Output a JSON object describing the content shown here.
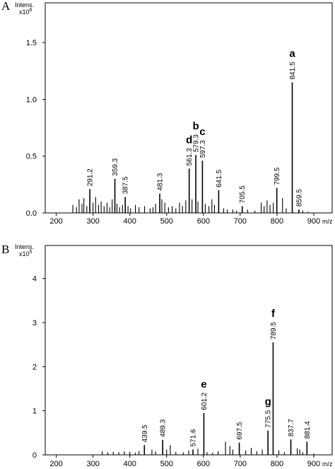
{
  "chart_data": [
    {
      "panel": "A",
      "type": "bar",
      "ylabel": "Intens.",
      "yunit_base": "x10",
      "yunit_exp": "6",
      "xlabel": "m/z",
      "xlim": [
        170,
        950
      ],
      "ylim": [
        0,
        1.85
      ],
      "xticks": [
        200,
        300,
        400,
        500,
        600,
        700,
        800,
        900
      ],
      "yticks": [
        "0.0",
        "0.5",
        "1.0",
        "1.5"
      ],
      "ytick_values": [
        0.0,
        0.5,
        1.0,
        1.5
      ],
      "labeled_peaks": [
        {
          "mz": 291.2,
          "value": 0.21,
          "label": "291.2"
        },
        {
          "mz": 359.3,
          "value": 0.3,
          "label": "359.3"
        },
        {
          "mz": 387.5,
          "value": 0.14,
          "label": "387.5"
        },
        {
          "mz": 481.3,
          "value": 0.17,
          "label": "481.3"
        },
        {
          "mz": 561.3,
          "value": 0.39,
          "label": "561.3",
          "annotation": "d"
        },
        {
          "mz": 579.3,
          "value": 0.51,
          "label": "579.3",
          "annotation": "b"
        },
        {
          "mz": 597.3,
          "value": 0.46,
          "label": "597.3",
          "annotation": "c"
        },
        {
          "mz": 641.5,
          "value": 0.2,
          "label": "641.5"
        },
        {
          "mz": 705.5,
          "value": 0.06,
          "label": "705.5"
        },
        {
          "mz": 799.5,
          "value": 0.22,
          "label": "799.5"
        },
        {
          "mz": 841.5,
          "value": 1.15,
          "label": "841.5",
          "annotation": "a"
        },
        {
          "mz": 859.5,
          "value": 0.03,
          "label": "859.5"
        }
      ],
      "minor_peaks": [
        {
          "mz": 245,
          "value": 0.07
        },
        {
          "mz": 255,
          "value": 0.05
        },
        {
          "mz": 262,
          "value": 0.12
        },
        {
          "mz": 270,
          "value": 0.08
        },
        {
          "mz": 275,
          "value": 0.13
        },
        {
          "mz": 283,
          "value": 0.06
        },
        {
          "mz": 300,
          "value": 0.09
        },
        {
          "mz": 307,
          "value": 0.14
        },
        {
          "mz": 315,
          "value": 0.07
        },
        {
          "mz": 322,
          "value": 0.1
        },
        {
          "mz": 330,
          "value": 0.06
        },
        {
          "mz": 338,
          "value": 0.09
        },
        {
          "mz": 345,
          "value": 0.05
        },
        {
          "mz": 352,
          "value": 0.12
        },
        {
          "mz": 365,
          "value": 0.08
        },
        {
          "mz": 372,
          "value": 0.05
        },
        {
          "mz": 380,
          "value": 0.07
        },
        {
          "mz": 395,
          "value": 0.06
        },
        {
          "mz": 402,
          "value": 0.04
        },
        {
          "mz": 415,
          "value": 0.07
        },
        {
          "mz": 425,
          "value": 0.05
        },
        {
          "mz": 440,
          "value": 0.06
        },
        {
          "mz": 455,
          "value": 0.04
        },
        {
          "mz": 463,
          "value": 0.05
        },
        {
          "mz": 470,
          "value": 0.08
        },
        {
          "mz": 487,
          "value": 0.12
        },
        {
          "mz": 495,
          "value": 0.09
        },
        {
          "mz": 505,
          "value": 0.05
        },
        {
          "mz": 515,
          "value": 0.06
        },
        {
          "mz": 525,
          "value": 0.04
        },
        {
          "mz": 535,
          "value": 0.09
        },
        {
          "mz": 543,
          "value": 0.06
        },
        {
          "mz": 552,
          "value": 0.11
        },
        {
          "mz": 569,
          "value": 0.12
        },
        {
          "mz": 585,
          "value": 0.1
        },
        {
          "mz": 605,
          "value": 0.08
        },
        {
          "mz": 615,
          "value": 0.06
        },
        {
          "mz": 623,
          "value": 0.12
        },
        {
          "mz": 630,
          "value": 0.07
        },
        {
          "mz": 655,
          "value": 0.04
        },
        {
          "mz": 665,
          "value": 0.03
        },
        {
          "mz": 680,
          "value": 0.03
        },
        {
          "mz": 690,
          "value": 0.02
        },
        {
          "mz": 720,
          "value": 0.03
        },
        {
          "mz": 740,
          "value": 0.02
        },
        {
          "mz": 757,
          "value": 0.09
        },
        {
          "mz": 765,
          "value": 0.06
        },
        {
          "mz": 773,
          "value": 0.11
        },
        {
          "mz": 781,
          "value": 0.07
        },
        {
          "mz": 790,
          "value": 0.09
        },
        {
          "mz": 815,
          "value": 0.13
        },
        {
          "mz": 825,
          "value": 0.04
        },
        {
          "mz": 870,
          "value": 0.02
        },
        {
          "mz": 885,
          "value": 0.01
        }
      ]
    },
    {
      "panel": "B",
      "type": "bar",
      "ylabel": "Intens.",
      "yunit_base": "x10",
      "yunit_exp": "5",
      "xlabel": "m/z",
      "xlim": [
        170,
        950
      ],
      "ylim": [
        0,
        4.75
      ],
      "xticks": [
        200,
        300,
        400,
        500,
        600,
        700,
        800,
        900
      ],
      "yticks": [
        "0",
        "1",
        "2",
        "3",
        "4"
      ],
      "ytick_values": [
        0,
        1,
        2,
        3,
        4
      ],
      "labeled_peaks": [
        {
          "mz": 439.5,
          "value": 0.22,
          "label": "439.5"
        },
        {
          "mz": 489.3,
          "value": 0.34,
          "label": "489.3"
        },
        {
          "mz": 571.6,
          "value": 0.12,
          "label": "571.6"
        },
        {
          "mz": 601.2,
          "value": 0.95,
          "label": "601.2",
          "annotation": "e"
        },
        {
          "mz": 697.5,
          "value": 0.28,
          "label": "697.5"
        },
        {
          "mz": 775.5,
          "value": 0.55,
          "label": "775.5",
          "annotation": "g"
        },
        {
          "mz": 789.5,
          "value": 2.55,
          "label": "789.5",
          "annotation": "f"
        },
        {
          "mz": 837.7,
          "value": 0.35,
          "label": "837.7"
        },
        {
          "mz": 881.4,
          "value": 0.3,
          "label": "881.4"
        }
      ],
      "minor_peaks": [
        {
          "mz": 325,
          "value": 0.08
        },
        {
          "mz": 340,
          "value": 0.06
        },
        {
          "mz": 355,
          "value": 0.07
        },
        {
          "mz": 370,
          "value": 0.06
        },
        {
          "mz": 385,
          "value": 0.08
        },
        {
          "mz": 400,
          "value": 0.07
        },
        {
          "mz": 415,
          "value": 0.05
        },
        {
          "mz": 425,
          "value": 0.09
        },
        {
          "mz": 460,
          "value": 0.12
        },
        {
          "mz": 470,
          "value": 0.08
        },
        {
          "mz": 500,
          "value": 0.12
        },
        {
          "mz": 510,
          "value": 0.22
        },
        {
          "mz": 525,
          "value": 0.07
        },
        {
          "mz": 545,
          "value": 0.06
        },
        {
          "mz": 560,
          "value": 0.1
        },
        {
          "mz": 585,
          "value": 0.14
        },
        {
          "mz": 610,
          "value": 0.06
        },
        {
          "mz": 625,
          "value": 0.05
        },
        {
          "mz": 640,
          "value": 0.08
        },
        {
          "mz": 660,
          "value": 0.3
        },
        {
          "mz": 672,
          "value": 0.2
        },
        {
          "mz": 680,
          "value": 0.12
        },
        {
          "mz": 715,
          "value": 0.1
        },
        {
          "mz": 730,
          "value": 0.16
        },
        {
          "mz": 745,
          "value": 0.08
        },
        {
          "mz": 760,
          "value": 0.12
        },
        {
          "mz": 805,
          "value": 0.1
        },
        {
          "mz": 820,
          "value": 0.06
        },
        {
          "mz": 855,
          "value": 0.15
        },
        {
          "mz": 862,
          "value": 0.12
        },
        {
          "mz": 870,
          "value": 0.06
        },
        {
          "mz": 900,
          "value": 0.03
        }
      ]
    }
  ]
}
